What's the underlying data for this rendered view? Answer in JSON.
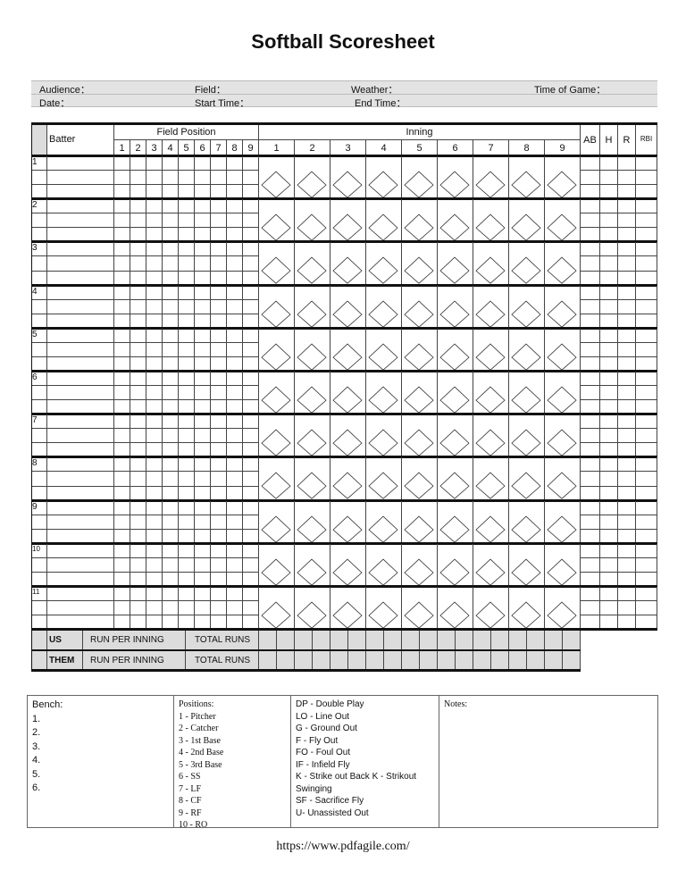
{
  "title": "Softball Scoresheet",
  "info": {
    "audience": "Audience：",
    "field": "Field：",
    "weather": "Weather：",
    "time_of_game": "Time of Game：",
    "date": "Date：",
    "start_time": "Start Time：",
    "end_time": "End Time："
  },
  "table": {
    "batter_header": "Batter",
    "field_position_header": "Field Position",
    "inning_header": "Inning",
    "field_positions": [
      "1",
      "2",
      "3",
      "4",
      "5",
      "6",
      "7",
      "8",
      "9"
    ],
    "innings": [
      "1",
      "2",
      "3",
      "4",
      "5",
      "6",
      "7",
      "8",
      "9"
    ],
    "stats": [
      "AB",
      "H",
      "R",
      "RBI"
    ],
    "batters": [
      "1",
      "2",
      "3",
      "4",
      "5",
      "6",
      "7",
      "8",
      "9",
      "10",
      "11"
    ]
  },
  "totals": [
    {
      "team": "US",
      "run_per_inning": "RUN PER INNING",
      "total_runs": "TOTAL RUNS"
    },
    {
      "team": "THEM",
      "run_per_inning": "RUN PER INNING",
      "total_runs": "TOTAL RUNS"
    }
  ],
  "bench": {
    "label": "Bench:",
    "items": [
      "1.",
      "2.",
      "3.",
      "4.",
      "5.",
      "6."
    ]
  },
  "positions": {
    "label": "Positions:",
    "items": [
      "1 - Pitcher",
      "2 - Catcher",
      "3 - 1st Base",
      "4 - 2nd Base",
      "5 - 3rd Base",
      "6 - SS",
      "7 - LF",
      "8 - CF",
      "9 - RF",
      "10 - RO"
    ]
  },
  "abbreviations": [
    "DP - Double Play",
    "LO - Line Out",
    "G - Ground Out",
    "F - Fly Out",
    "FO - Foul Out",
    "IF - Infield Fly",
    "K - Strike out Back K - Strikout",
    "Swinging",
    "SF - Sacrifice Fly",
    "U- Unassisted Out"
  ],
  "notes": {
    "label": "Notes:"
  },
  "footer_url": "https://www.pdfagile.com/"
}
